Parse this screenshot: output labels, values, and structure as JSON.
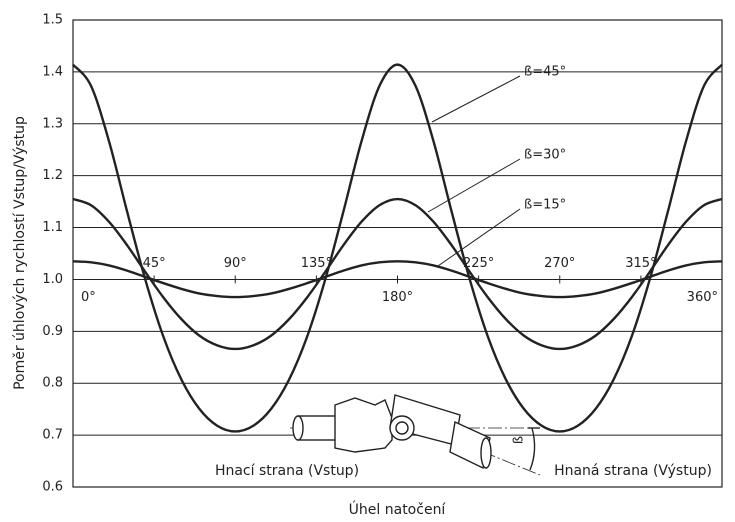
{
  "chart_data": {
    "type": "line",
    "y_label": "Poměr úhlových rychlostí Vstup/Výstup",
    "x_label": "Úhel natočení",
    "xlim": [
      0,
      360
    ],
    "xticks": [
      {
        "value": 0,
        "label": "0°"
      },
      {
        "value": 45,
        "label": "45°"
      },
      {
        "value": 90,
        "label": "90°"
      },
      {
        "value": 135,
        "label": "135°"
      },
      {
        "value": 180,
        "label": "180°"
      },
      {
        "value": 225,
        "label": "225°"
      },
      {
        "value": 270,
        "label": "270°"
      },
      {
        "value": 315,
        "label": "315°"
      },
      {
        "value": 360,
        "label": "360°"
      }
    ],
    "ylim": [
      0.6,
      1.5
    ],
    "yticks": [
      0.6,
      0.7,
      0.8,
      0.9,
      {
        "value": 1,
        "label": "1.0"
      },
      1.1,
      1.2,
      1.3,
      1.4,
      1.5
    ],
    "grid": true,
    "x": [
      0,
      10,
      20,
      30,
      40,
      50,
      60,
      70,
      80,
      90,
      100,
      110,
      120,
      130,
      140,
      150,
      160,
      170,
      180,
      190,
      200,
      210,
      220,
      230,
      240,
      250,
      260,
      270,
      280,
      290,
      300,
      310,
      320,
      330,
      340,
      350,
      360
    ],
    "series": [
      {
        "name": "ß=45°",
        "color": "#222222",
        "values": [
          1.414,
          1.373,
          1.266,
          1.131,
          1.001,
          0.891,
          0.808,
          0.751,
          0.718,
          0.707,
          0.718,
          0.751,
          0.808,
          0.891,
          1.001,
          1.131,
          1.266,
          1.373,
          1.414,
          1.373,
          1.266,
          1.131,
          1.001,
          0.891,
          0.808,
          0.751,
          0.718,
          0.707,
          0.718,
          0.751,
          0.808,
          0.891,
          1.001,
          1.131,
          1.266,
          1.373,
          1.414
        ]
      },
      {
        "name": "ß=30°",
        "color": "#222222",
        "values": [
          1.155,
          1.143,
          1.111,
          1.066,
          1.015,
          0.966,
          0.924,
          0.892,
          0.873,
          0.866,
          0.873,
          0.892,
          0.924,
          0.966,
          1.015,
          1.066,
          1.111,
          1.143,
          1.155,
          1.143,
          1.111,
          1.066,
          1.015,
          0.966,
          0.924,
          0.892,
          0.873,
          0.866,
          0.873,
          0.892,
          0.924,
          0.966,
          1.015,
          1.066,
          1.111,
          1.143,
          1.155
        ]
      },
      {
        "name": "ß=15°",
        "color": "#222222",
        "values": [
          1.035,
          1.033,
          1.027,
          1.017,
          1.005,
          0.993,
          0.982,
          0.973,
          0.968,
          0.966,
          0.968,
          0.973,
          0.982,
          0.993,
          1.005,
          1.017,
          1.027,
          1.033,
          1.035,
          1.033,
          1.027,
          1.017,
          1.005,
          0.993,
          0.982,
          0.973,
          0.968,
          0.966,
          0.968,
          0.973,
          0.982,
          0.993,
          1.005,
          1.017,
          1.027,
          1.033,
          1.035
        ]
      }
    ],
    "annotations": {
      "input_label": "Hnací strana (Vstup)",
      "output_label": "Hnaná strana (Výstup)",
      "angle_label": "ß"
    }
  }
}
